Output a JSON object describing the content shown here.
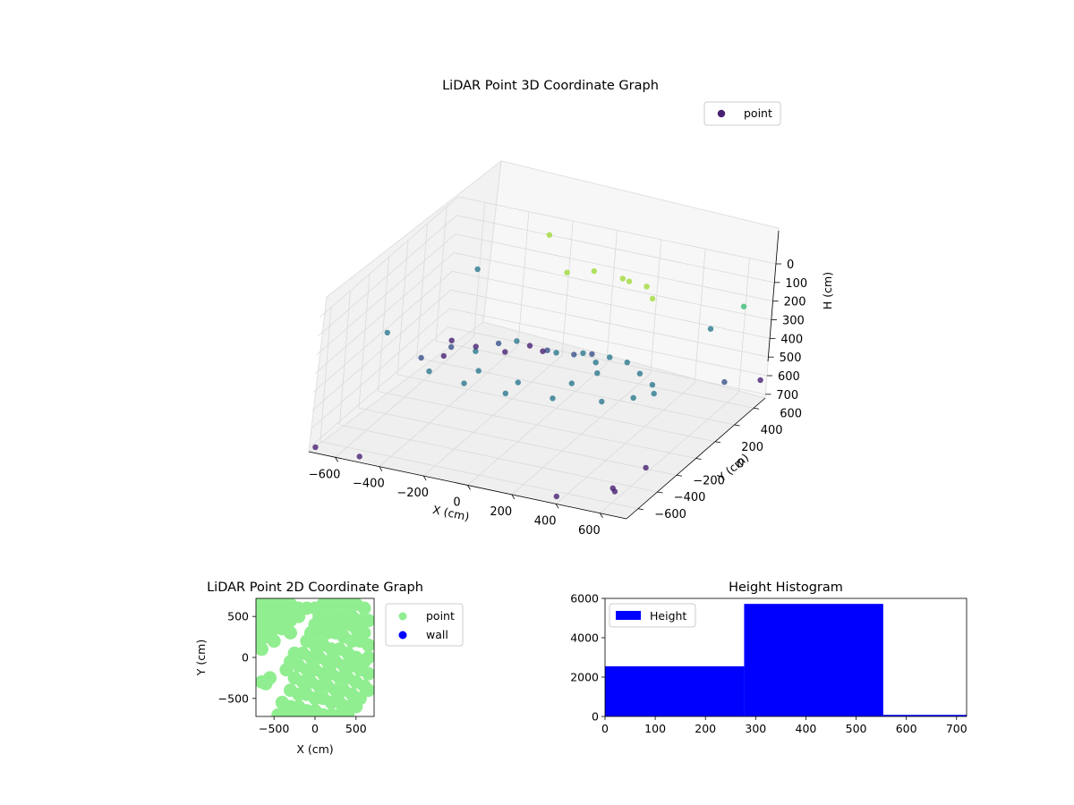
{
  "colors": {
    "scatter_3d": "#482173",
    "scatter_3d_high": "#a0da39",
    "point_2d": "#90ee90",
    "wall_2d": "#0000ff",
    "histogram": "#0000ff",
    "pane": "#f2f2f2",
    "grid": "#dadada"
  },
  "chart_data": [
    {
      "type": "scatter",
      "projection": "3d",
      "title": "LiDAR Point 3D Coordinate Graph",
      "xlabel": "X (cm)",
      "ylabel": "Y (cm)",
      "zlabel": "H (cm)",
      "xlim": [
        -720,
        720
      ],
      "ylim": [
        -720,
        720
      ],
      "zlim": [
        720,
        0
      ],
      "x_ticks": [
        "−600",
        "−400",
        "−200",
        "0",
        "200",
        "400",
        "600"
      ],
      "y_ticks": [
        "−600",
        "−400",
        "−200",
        "0",
        "200",
        "400",
        "600"
      ],
      "z_ticks": [
        "0",
        "100",
        "200",
        "300",
        "400",
        "500",
        "600",
        "700"
      ],
      "grid": true,
      "legend": {
        "placement": "top-right",
        "entries": [
          "point"
        ]
      },
      "series": [
        {
          "name": "point",
          "color_map": "viridis",
          "points": [
            [
              -650,
              600,
              700
            ],
            [
              -600,
              400,
              680
            ],
            [
              -500,
              500,
              650
            ],
            [
              -400,
              580,
              690
            ],
            [
              -300,
              600,
              640
            ],
            [
              -200,
              500,
              600
            ],
            [
              0,
              350,
              500
            ],
            [
              100,
              300,
              450
            ],
            [
              200,
              250,
              420
            ],
            [
              300,
              200,
              400
            ],
            [
              400,
              100,
              390
            ],
            [
              500,
              0,
              380
            ],
            [
              550,
              -100,
              370
            ],
            [
              500,
              -200,
              360
            ],
            [
              400,
              -300,
              360
            ],
            [
              200,
              -350,
              370
            ],
            [
              0,
              -380,
              380
            ],
            [
              -200,
              -350,
              390
            ],
            [
              -400,
              -250,
              420
            ],
            [
              -500,
              -100,
              440
            ],
            [
              -450,
              100,
              460
            ],
            [
              -300,
              250,
              470
            ],
            [
              -100,
              300,
              480
            ],
            [
              100,
              200,
              400
            ],
            [
              200,
              100,
              380
            ],
            [
              250,
              0,
              380
            ],
            [
              200,
              -150,
              380
            ],
            [
              0,
              -250,
              380
            ],
            [
              -200,
              -200,
              390
            ],
            [
              -300,
              0,
              400
            ],
            [
              -200,
              200,
              410
            ],
            [
              0,
              150,
              400
            ],
            [
              150,
              450,
              100
            ],
            [
              200,
              400,
              80
            ],
            [
              300,
              350,
              60
            ],
            [
              350,
              300,
              90
            ],
            [
              0,
              500,
              120
            ],
            [
              -100,
              450,
              130
            ],
            [
              650,
              -700,
              600
            ],
            [
              700,
              -500,
              550
            ],
            [
              -700,
              -700,
              700
            ],
            [
              -600,
              700,
              350
            ],
            [
              600,
              700,
              250
            ],
            [
              700,
              300,
              450
            ],
            [
              700,
              700,
              620
            ],
            [
              -700,
              0,
              400
            ],
            [
              -500,
              -700,
              700
            ],
            [
              400,
              -720,
              680
            ],
            [
              -300,
              720,
              100
            ],
            [
              500,
              600,
              350
            ],
            [
              600,
              -600,
              640
            ]
          ]
        }
      ]
    },
    {
      "type": "scatter",
      "title": "LiDAR Point 2D Coordinate Graph",
      "xlabel": "X (cm)",
      "ylabel": "Y (cm)",
      "xlim": [
        -720,
        720
      ],
      "ylim": [
        -720,
        720
      ],
      "x_ticks": [
        "−500",
        "0",
        "500"
      ],
      "y_ticks": [
        "500",
        "0",
        "−500"
      ],
      "legend": {
        "placement": "outside-right",
        "entries": [
          "point",
          "wall"
        ]
      },
      "series": [
        {
          "name": "point",
          "points": [
            [
              -700,
              650
            ],
            [
              -600,
              650
            ],
            [
              -500,
              650
            ],
            [
              -400,
              650
            ],
            [
              -300,
              650
            ],
            [
              -200,
              600
            ],
            [
              -100,
              600
            ],
            [
              -700,
              550
            ],
            [
              -600,
              550
            ],
            [
              -500,
              550
            ],
            [
              -400,
              550
            ],
            [
              -300,
              550
            ],
            [
              -200,
              500
            ],
            [
              -700,
              450
            ],
            [
              -600,
              450
            ],
            [
              -500,
              450
            ],
            [
              -400,
              450
            ],
            [
              -300,
              450
            ],
            [
              -700,
              350
            ],
            [
              -600,
              350
            ],
            [
              -500,
              350
            ],
            [
              -400,
              350
            ],
            [
              -300,
              300
            ],
            [
              -700,
              250
            ],
            [
              -600,
              250
            ],
            [
              -500,
              200
            ],
            [
              -700,
              150
            ],
            [
              -650,
              100
            ],
            [
              0,
              600
            ],
            [
              100,
              650
            ],
            [
              200,
              650
            ],
            [
              300,
              650
            ],
            [
              400,
              650
            ],
            [
              500,
              650
            ],
            [
              600,
              600
            ],
            [
              50,
              500
            ],
            [
              150,
              500
            ],
            [
              250,
              500
            ],
            [
              350,
              500
            ],
            [
              450,
              500
            ],
            [
              550,
              450
            ],
            [
              650,
              450
            ],
            [
              0,
              400
            ],
            [
              100,
              400
            ],
            [
              200,
              400
            ],
            [
              300,
              400
            ],
            [
              400,
              400
            ],
            [
              500,
              350
            ],
            [
              600,
              300
            ],
            [
              -50,
              300
            ],
            [
              50,
              300
            ],
            [
              150,
              300
            ],
            [
              250,
              300
            ],
            [
              350,
              250
            ],
            [
              450,
              200
            ],
            [
              550,
              200
            ],
            [
              650,
              150
            ],
            [
              -100,
              200
            ],
            [
              0,
              150
            ],
            [
              100,
              150
            ],
            [
              200,
              100
            ],
            [
              300,
              100
            ],
            [
              400,
              50
            ],
            [
              500,
              0
            ],
            [
              600,
              -50
            ],
            [
              650,
              0
            ],
            [
              -150,
              50
            ],
            [
              -50,
              0
            ],
            [
              50,
              0
            ],
            [
              150,
              -50
            ],
            [
              250,
              -50
            ],
            [
              350,
              -100
            ],
            [
              450,
              -100
            ],
            [
              550,
              -150
            ],
            [
              650,
              -200
            ],
            [
              -200,
              -100
            ],
            [
              -100,
              -150
            ],
            [
              0,
              -150
            ],
            [
              100,
              -200
            ],
            [
              200,
              -200
            ],
            [
              300,
              -250
            ],
            [
              400,
              -250
            ],
            [
              500,
              -300
            ],
            [
              600,
              -350
            ],
            [
              650,
              -400
            ],
            [
              -250,
              -250
            ],
            [
              -150,
              -300
            ],
            [
              -50,
              -300
            ],
            [
              50,
              -350
            ],
            [
              150,
              -350
            ],
            [
              250,
              -400
            ],
            [
              350,
              -400
            ],
            [
              450,
              -450
            ],
            [
              550,
              -500
            ],
            [
              -300,
              -400
            ],
            [
              -200,
              -450
            ],
            [
              -100,
              -450
            ],
            [
              0,
              -500
            ],
            [
              100,
              -500
            ],
            [
              200,
              -550
            ],
            [
              300,
              -550
            ],
            [
              400,
              -600
            ],
            [
              500,
              -600
            ],
            [
              -400,
              -550
            ],
            [
              -300,
              -600
            ],
            [
              -200,
              -600
            ],
            [
              -100,
              -650
            ],
            [
              0,
              -650
            ],
            [
              100,
              -700
            ],
            [
              200,
              -700
            ],
            [
              300,
              -700
            ],
            [
              400,
              -700
            ],
            [
              -450,
              -700
            ],
            [
              -350,
              -700
            ],
            [
              -250,
              -700
            ],
            [
              -150,
              -700
            ],
            [
              -350,
              -150
            ],
            [
              -300,
              -50
            ],
            [
              -250,
              50
            ],
            [
              -550,
              -250
            ],
            [
              -650,
              -300
            ],
            [
              -600,
              -320
            ]
          ]
        },
        {
          "name": "wall",
          "points": []
        }
      ]
    },
    {
      "type": "bar",
      "subtype": "histogram",
      "title": "Height Histogram",
      "xlim": [
        0,
        720
      ],
      "ylim": [
        0,
        6000
      ],
      "x_ticks": [
        "0",
        "100",
        "200",
        "300",
        "400",
        "500",
        "600",
        "700"
      ],
      "y_ticks": [
        "0",
        "2000",
        "4000",
        "6000"
      ],
      "legend": {
        "placement": "top-left",
        "entries": [
          "Height"
        ]
      },
      "bins": [
        [
          0,
          277
        ],
        [
          277,
          554
        ],
        [
          554,
          720
        ]
      ],
      "values": [
        2550,
        5720,
        80
      ],
      "series": [
        {
          "name": "Height",
          "values": [
            2550,
            5720,
            80
          ]
        }
      ]
    }
  ]
}
